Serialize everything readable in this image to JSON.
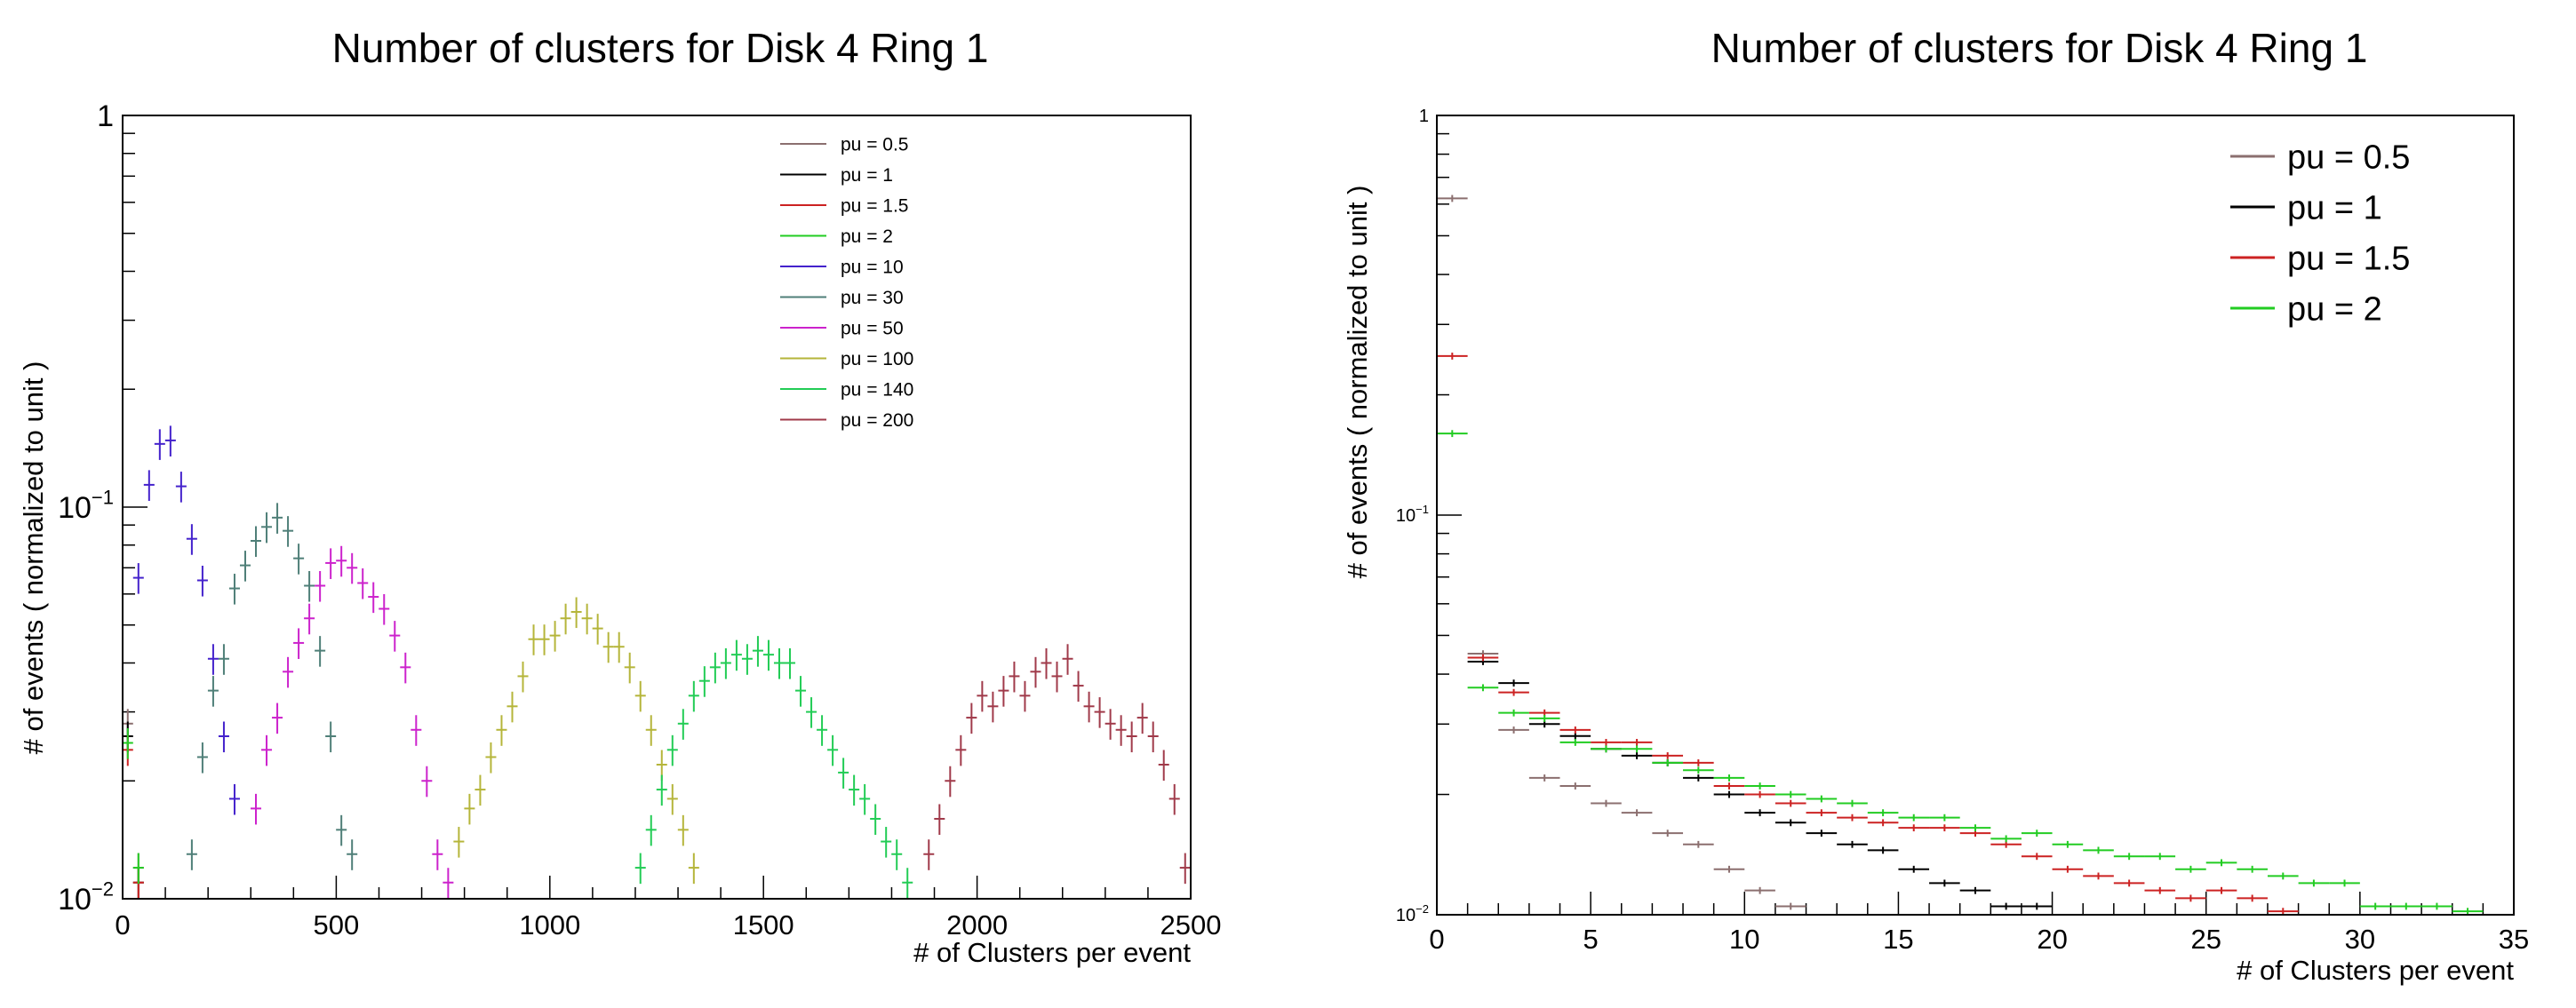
{
  "chart_data": [
    {
      "type": "scatter",
      "title": "Number of clusters for Disk 4 Ring 1",
      "xlabel": "# of Clusters per event",
      "ylabel": "# of events ( normalized to unit )",
      "xlim": [
        0,
        2500
      ],
      "ylim": [
        0.01,
        1
      ],
      "yscale": "log",
      "x_ticks": [
        "0",
        "500",
        "1000",
        "1500",
        "2000",
        "2500"
      ],
      "y_ticks": [
        {
          "value": 1,
          "label": "1"
        },
        {
          "value": 0.1,
          "label": "10",
          "exp": "−1"
        },
        {
          "value": 0.01,
          "label": "10",
          "exp": "−2"
        }
      ],
      "grid": false,
      "legend_position": "top-right",
      "bin_width": 25,
      "series": [
        {
          "name": "pu = 0.5",
          "color": "#8b6f6f",
          "points": [
            [
              12,
              0.028
            ],
            [
              37,
              0.012
            ]
          ]
        },
        {
          "name": "pu = 1",
          "color": "#000000",
          "points": [
            [
              12,
              0.026
            ],
            [
              37,
              0.011
            ]
          ]
        },
        {
          "name": "pu = 1.5",
          "color": "#cc2222",
          "points": [
            [
              12,
              0.024
            ],
            [
              37,
              0.011
            ]
          ]
        },
        {
          "name": "pu = 2",
          "color": "#22cc22",
          "points": [
            [
              12,
              0.025
            ],
            [
              37,
              0.012
            ]
          ]
        },
        {
          "name": "pu = 10",
          "color": "#4422cc",
          "points": [
            [
              37,
              0.066
            ],
            [
              62,
              0.114
            ],
            [
              87,
              0.145
            ],
            [
              112,
              0.148
            ],
            [
              137,
              0.113
            ],
            [
              162,
              0.083
            ],
            [
              187,
              0.065
            ],
            [
              212,
              0.041
            ],
            [
              237,
              0.026
            ],
            [
              262,
              0.018
            ]
          ]
        },
        {
          "name": "pu = 30",
          "color": "#4f7f78",
          "points": [
            [
              162,
              0.013
            ],
            [
              187,
              0.023
            ],
            [
              212,
              0.034
            ],
            [
              237,
              0.041
            ],
            [
              262,
              0.062
            ],
            [
              287,
              0.071
            ],
            [
              312,
              0.082
            ],
            [
              337,
              0.089
            ],
            [
              362,
              0.094
            ],
            [
              387,
              0.087
            ],
            [
              412,
              0.074
            ],
            [
              437,
              0.063
            ],
            [
              462,
              0.043
            ],
            [
              487,
              0.026
            ],
            [
              512,
              0.015
            ],
            [
              537,
              0.013
            ]
          ]
        },
        {
          "name": "pu = 50",
          "color": "#cc22cc",
          "points": [
            [
              312,
              0.017
            ],
            [
              337,
              0.024
            ],
            [
              362,
              0.029
            ],
            [
              387,
              0.038
            ],
            [
              412,
              0.045
            ],
            [
              437,
              0.052
            ],
            [
              462,
              0.063
            ],
            [
              487,
              0.072
            ],
            [
              512,
              0.073
            ],
            [
              537,
              0.07
            ],
            [
              562,
              0.064
            ],
            [
              587,
              0.059
            ],
            [
              612,
              0.055
            ],
            [
              637,
              0.047
            ],
            [
              662,
              0.039
            ],
            [
              687,
              0.027
            ],
            [
              712,
              0.02
            ],
            [
              737,
              0.013
            ],
            [
              762,
              0.011
            ]
          ]
        },
        {
          "name": "pu = 100",
          "color": "#b5b53a",
          "points": [
            [
              787,
              0.014
            ],
            [
              812,
              0.017
            ],
            [
              837,
              0.019
            ],
            [
              862,
              0.023
            ],
            [
              887,
              0.027
            ],
            [
              912,
              0.031
            ],
            [
              937,
              0.037
            ],
            [
              962,
              0.046
            ],
            [
              987,
              0.046
            ],
            [
              1012,
              0.047
            ],
            [
              1037,
              0.052
            ],
            [
              1062,
              0.054
            ],
            [
              1087,
              0.052
            ],
            [
              1112,
              0.049
            ],
            [
              1137,
              0.044
            ],
            [
              1162,
              0.044
            ],
            [
              1187,
              0.039
            ],
            [
              1212,
              0.033
            ],
            [
              1237,
              0.027
            ],
            [
              1262,
              0.022
            ],
            [
              1287,
              0.018
            ],
            [
              1312,
              0.015
            ],
            [
              1337,
              0.012
            ]
          ]
        },
        {
          "name": "pu = 140",
          "color": "#22cc55",
          "points": [
            [
              1212,
              0.012
            ],
            [
              1237,
              0.015
            ],
            [
              1262,
              0.019
            ],
            [
              1287,
              0.024
            ],
            [
              1312,
              0.028
            ],
            [
              1337,
              0.033
            ],
            [
              1362,
              0.036
            ],
            [
              1387,
              0.039
            ],
            [
              1412,
              0.04
            ],
            [
              1437,
              0.042
            ],
            [
              1462,
              0.041
            ],
            [
              1487,
              0.043
            ],
            [
              1512,
              0.042
            ],
            [
              1537,
              0.04
            ],
            [
              1562,
              0.04
            ],
            [
              1587,
              0.034
            ],
            [
              1612,
              0.03
            ],
            [
              1637,
              0.027
            ],
            [
              1662,
              0.024
            ],
            [
              1687,
              0.021
            ],
            [
              1712,
              0.019
            ],
            [
              1737,
              0.018
            ],
            [
              1762,
              0.016
            ],
            [
              1787,
              0.014
            ],
            [
              1812,
              0.013
            ],
            [
              1837,
              0.011
            ]
          ]
        },
        {
          "name": "pu = 200",
          "color": "#a03a4a",
          "points": [
            [
              1887,
              0.013
            ],
            [
              1912,
              0.016
            ],
            [
              1937,
              0.02
            ],
            [
              1962,
              0.024
            ],
            [
              1987,
              0.029
            ],
            [
              2012,
              0.033
            ],
            [
              2037,
              0.031
            ],
            [
              2062,
              0.034
            ],
            [
              2087,
              0.037
            ],
            [
              2112,
              0.033
            ],
            [
              2137,
              0.038
            ],
            [
              2162,
              0.04
            ],
            [
              2187,
              0.037
            ],
            [
              2212,
              0.041
            ],
            [
              2237,
              0.035
            ],
            [
              2262,
              0.031
            ],
            [
              2287,
              0.03
            ],
            [
              2312,
              0.028
            ],
            [
              2337,
              0.027
            ],
            [
              2362,
              0.026
            ],
            [
              2387,
              0.029
            ],
            [
              2412,
              0.026
            ],
            [
              2437,
              0.022
            ],
            [
              2462,
              0.018
            ],
            [
              2487,
              0.012
            ]
          ]
        }
      ]
    },
    {
      "type": "scatter",
      "title": "Number of clusters for Disk 4 Ring 1",
      "xlabel": "# of Clusters per event",
      "ylabel": "# of events ( normalized to unit )",
      "xlim": [
        0,
        35
      ],
      "ylim": [
        0.01,
        1
      ],
      "yscale": "log",
      "x_ticks": [
        "0",
        "5",
        "10",
        "15",
        "20",
        "25",
        "30",
        "35"
      ],
      "y_ticks": [
        {
          "value": 1,
          "label": "1"
        },
        {
          "value": 0.1,
          "label": "10",
          "exp": "−1"
        },
        {
          "value": 0.01,
          "label": "10",
          "exp": "−2"
        }
      ],
      "grid": false,
      "legend_position": "top-right",
      "bin_width": 1,
      "series": [
        {
          "name": "pu = 0.5",
          "color": "#8b6f6f",
          "points": [
            [
              0.5,
              0.62
            ],
            [
              1.5,
              0.045
            ],
            [
              2.5,
              0.029
            ],
            [
              3.5,
              0.022
            ],
            [
              4.5,
              0.021
            ],
            [
              5.5,
              0.019
            ],
            [
              6.5,
              0.018
            ],
            [
              7.5,
              0.016
            ],
            [
              8.5,
              0.015
            ],
            [
              9.5,
              0.013
            ],
            [
              10.5,
              0.0115
            ],
            [
              11.5,
              0.0105
            ]
          ]
        },
        {
          "name": "pu = 1",
          "color": "#000000",
          "points": [
            [
              1.5,
              0.043
            ],
            [
              2.5,
              0.038
            ],
            [
              3.5,
              0.03
            ],
            [
              4.5,
              0.028
            ],
            [
              5.5,
              0.026
            ],
            [
              6.5,
              0.025
            ],
            [
              7.5,
              0.024
            ],
            [
              8.5,
              0.022
            ],
            [
              9.5,
              0.02
            ],
            [
              10.5,
              0.018
            ],
            [
              11.5,
              0.017
            ],
            [
              12.5,
              0.016
            ],
            [
              13.5,
              0.015
            ],
            [
              14.5,
              0.0145
            ],
            [
              15.5,
              0.013
            ],
            [
              16.5,
              0.012
            ],
            [
              17.5,
              0.0115
            ],
            [
              18.5,
              0.0105
            ],
            [
              19.5,
              0.0105
            ]
          ]
        },
        {
          "name": "pu = 1.5",
          "color": "#cc2222",
          "points": [
            [
              0.5,
              0.25
            ],
            [
              1.5,
              0.044
            ],
            [
              2.5,
              0.036
            ],
            [
              3.5,
              0.032
            ],
            [
              4.5,
              0.029
            ],
            [
              5.5,
              0.027
            ],
            [
              6.5,
              0.027
            ],
            [
              7.5,
              0.025
            ],
            [
              8.5,
              0.024
            ],
            [
              9.5,
              0.021
            ],
            [
              10.5,
              0.02
            ],
            [
              11.5,
              0.019
            ],
            [
              12.5,
              0.018
            ],
            [
              13.5,
              0.0175
            ],
            [
              14.5,
              0.017
            ],
            [
              15.5,
              0.0165
            ],
            [
              16.5,
              0.0165
            ],
            [
              17.5,
              0.016
            ],
            [
              18.5,
              0.015
            ],
            [
              19.5,
              0.014
            ],
            [
              20.5,
              0.013
            ],
            [
              21.5,
              0.0125
            ],
            [
              22.5,
              0.012
            ],
            [
              23.5,
              0.0115
            ],
            [
              24.5,
              0.011
            ],
            [
              25.5,
              0.0115
            ],
            [
              26.5,
              0.011
            ],
            [
              27.5,
              0.0102
            ]
          ]
        },
        {
          "name": "pu = 2",
          "color": "#22cc22",
          "points": [
            [
              0.5,
              0.16
            ],
            [
              1.5,
              0.037
            ],
            [
              2.5,
              0.032
            ],
            [
              3.5,
              0.031
            ],
            [
              4.5,
              0.027
            ],
            [
              5.5,
              0.026
            ],
            [
              6.5,
              0.026
            ],
            [
              7.5,
              0.024
            ],
            [
              8.5,
              0.023
            ],
            [
              9.5,
              0.022
            ],
            [
              10.5,
              0.021
            ],
            [
              11.5,
              0.02
            ],
            [
              12.5,
              0.0195
            ],
            [
              13.5,
              0.019
            ],
            [
              14.5,
              0.018
            ],
            [
              15.5,
              0.0175
            ],
            [
              16.5,
              0.0175
            ],
            [
              17.5,
              0.0165
            ],
            [
              18.5,
              0.0155
            ],
            [
              19.5,
              0.016
            ],
            [
              20.5,
              0.015
            ],
            [
              21.5,
              0.0145
            ],
            [
              22.5,
              0.014
            ],
            [
              23.5,
              0.014
            ],
            [
              24.5,
              0.013
            ],
            [
              25.5,
              0.0135
            ],
            [
              26.5,
              0.013
            ],
            [
              27.5,
              0.0125
            ],
            [
              28.5,
              0.012
            ],
            [
              29.5,
              0.012
            ],
            [
              30.5,
              0.0105
            ],
            [
              31.5,
              0.0105
            ],
            [
              32.5,
              0.0105
            ],
            [
              33.5,
              0.0102
            ]
          ]
        }
      ]
    }
  ]
}
